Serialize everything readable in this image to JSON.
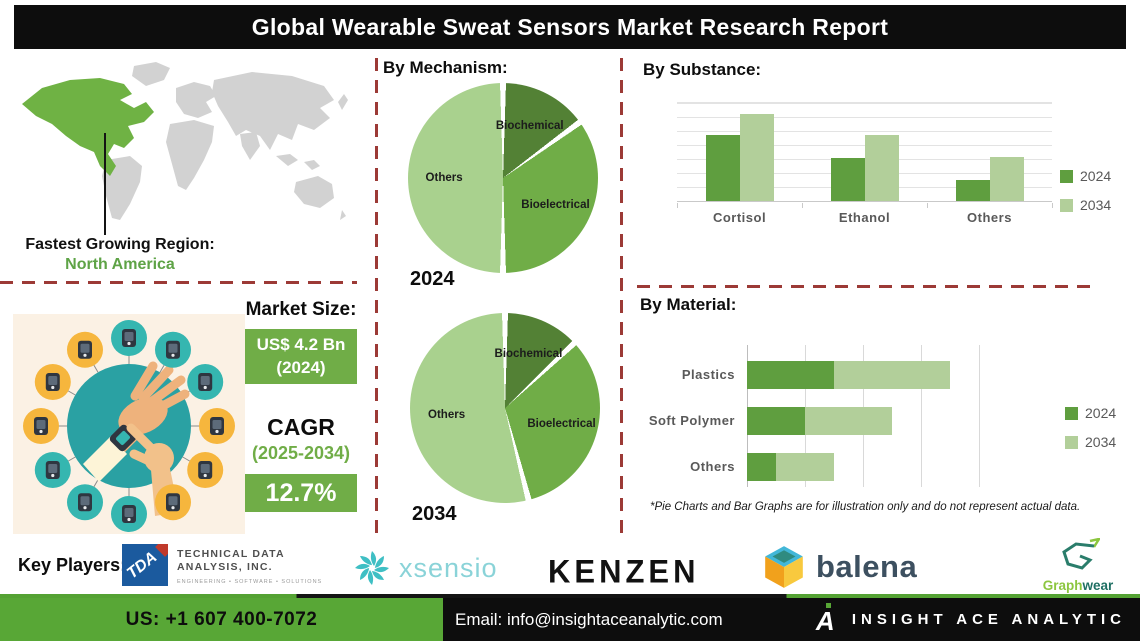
{
  "title": "Global Wearable Sweat Sensors Market Research Report",
  "region": {
    "label": "Fastest Growing Region:",
    "value": "North America"
  },
  "market": {
    "heading": "Market Size:",
    "size_value": "US$ 4.2 Bn",
    "size_year": "(2024)",
    "cagr_heading": "CAGR",
    "cagr_period": "(2025-2034)",
    "cagr_value": "12.7%"
  },
  "sections": {
    "mechanism_heading": "By Mechanism:",
    "substance_heading": "By Substance:",
    "material_heading": "By Material:"
  },
  "mechanism_years": [
    "2024",
    "2034"
  ],
  "footnote": "*Pie Charts and Bar Graphs are for illustration only and do not represent actual data.",
  "key_players": {
    "label": "Key Players:",
    "players": [
      {
        "name": "Technical Data Analysis, Inc.",
        "monogram": "TDA",
        "logo_line1": "TECHNICAL DATA\nANALYSIS, INC.",
        "logo_line2": "ENGINEERING  •  SOFTWARE  •  SOLUTIONS"
      },
      {
        "name": "Xsensio",
        "wordmark": "xsensio"
      },
      {
        "name": "Kenzen",
        "wordmark": "KENZEN"
      },
      {
        "name": "Balena",
        "wordmark": "balena"
      },
      {
        "name": "GraphWear",
        "wordmark_part1": "Graph",
        "wordmark_part2": "wear"
      }
    ]
  },
  "footer": {
    "phone": "US: +1 607 400-7072",
    "email": "Email: info@insightaceanalytic.com",
    "brand": "INSIGHT ACE ANALYTIC",
    "brand_monogram": "A"
  },
  "illustration": {
    "description": "hand-with-smartwatch surrounded by wearable devices",
    "devices": [
      "smart-sock-icon",
      "heart-monitor-icon",
      "thermometer-icon",
      "vr-headset-icon",
      "fitness-band-icon",
      "camera-icon",
      "smartphone-icon",
      "tablet-icon",
      "wristband-icon",
      "smart-glasses-icon",
      "smartwatch-icon",
      "inhaler-icon"
    ],
    "device_circle_colors": [
      "teal",
      "teal",
      "teal",
      "yellow",
      "yellow",
      "yellow",
      "teal",
      "teal",
      "teal",
      "yellow",
      "yellow",
      "yellow"
    ]
  },
  "colors": {
    "accent_green": "#70ad47",
    "map_green": "#6fb244",
    "map_gray": "#d2d2d2",
    "dash_red": "#9c3a36",
    "footer_green": "#58a736",
    "illus_teal": "#2aa1a3",
    "illus_yellow": "#f6b63d",
    "illus_cream": "#fbf1e4"
  },
  "chart_data": [
    {
      "type": "pie",
      "title": "By Mechanism — 2024",
      "labels": [
        "Biochemical",
        "Bioelectrical",
        "Others"
      ],
      "values": [
        15,
        35,
        50
      ],
      "unit": "% (illustrative)",
      "colors": [
        "#538135",
        "#70ad47",
        "#a9d18e"
      ],
      "start_angle_deg": 0,
      "note": "illustration only, not actual data"
    },
    {
      "type": "pie",
      "title": "By Mechanism — 2034",
      "labels": [
        "Biochemical",
        "Bioelectrical",
        "Others"
      ],
      "values": [
        13,
        33,
        54
      ],
      "unit": "% (illustrative)",
      "colors": [
        "#538135",
        "#70ad47",
        "#a9d18e"
      ],
      "start_angle_deg": 0,
      "note": "illustration only, not actual data"
    },
    {
      "type": "bar",
      "title": "By Substance",
      "categories": [
        "Cortisol",
        "Ethanol",
        "Others"
      ],
      "series": [
        {
          "name": "2024",
          "values": [
            66,
            43,
            21
          ]
        },
        {
          "name": "2034",
          "values": [
            87,
            66,
            44
          ]
        }
      ],
      "series_colors": [
        "#5f9e3f",
        "#b2cf9a"
      ],
      "ylim": [
        0,
        100
      ],
      "grid": true,
      "legend_position": "right",
      "note": "relative heights; illustration only, not actual data"
    },
    {
      "type": "bar",
      "title": "By Material",
      "orientation": "horizontal",
      "stacked": true,
      "categories": [
        "Plastics",
        "Soft Polymer",
        "Others"
      ],
      "series": [
        {
          "name": "2024",
          "values": [
            1.5,
            1.0,
            0.5
          ]
        },
        {
          "name": "2034",
          "values": [
            2.0,
            1.5,
            1.0
          ]
        }
      ],
      "series_colors": [
        "#5f9e3f",
        "#b2cf9a"
      ],
      "xlim": [
        0,
        4
      ],
      "grid": true,
      "legend_position": "right",
      "note": "relative lengths; illustration only, not actual data"
    }
  ]
}
